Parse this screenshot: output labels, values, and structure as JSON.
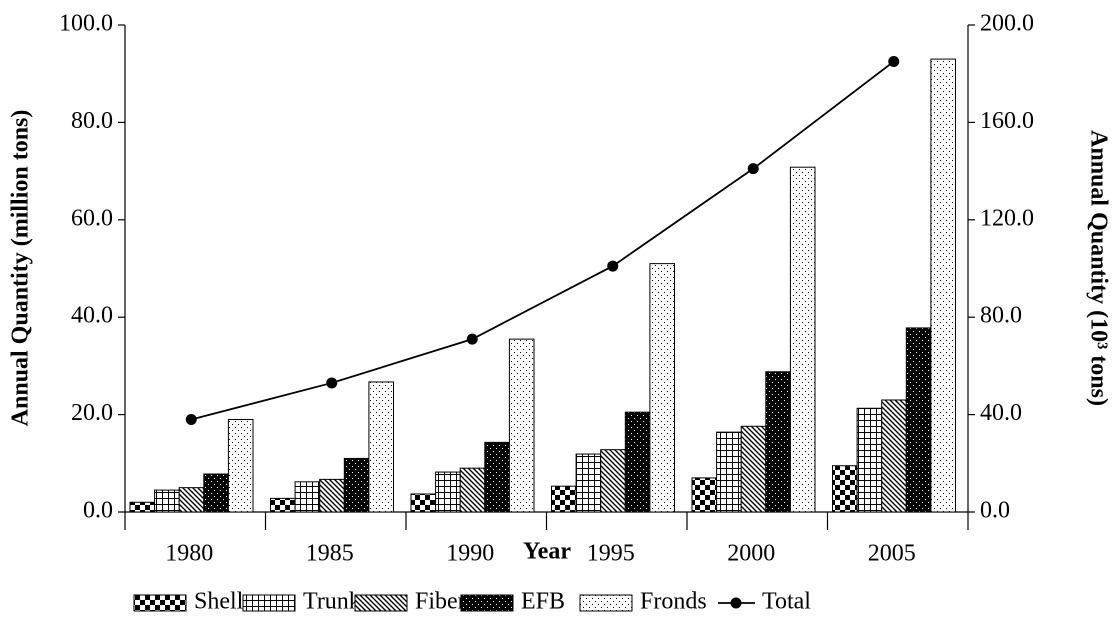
{
  "chart_data": {
    "type": "bar",
    "xlabel": "Year",
    "ylabel": "Annual Quantity (million tons)",
    "y2label": "Annual Quantity (10³ tons)",
    "categories": [
      "1980",
      "1985",
      "1990",
      "1995",
      "2000",
      "2005"
    ],
    "series": [
      {
        "name": "Shell",
        "color": "#000000",
        "values": [
          2.0,
          2.8,
          3.7,
          5.3,
          7.0,
          9.5
        ]
      },
      {
        "name": "Trunks",
        "color": "#000000",
        "values": [
          4.5,
          6.2,
          8.2,
          11.9,
          16.4,
          21.3
        ]
      },
      {
        "name": "Fiber",
        "color": "#000000",
        "values": [
          5.0,
          6.7,
          9.0,
          12.8,
          17.6,
          23.0
        ]
      },
      {
        "name": "EFB",
        "color": "#000000",
        "values": [
          7.8,
          11.0,
          14.3,
          20.5,
          28.8,
          37.8
        ]
      },
      {
        "name": "Fronds",
        "color": "#000000",
        "values": [
          19.0,
          26.7,
          35.5,
          51.0,
          70.8,
          93.0
        ]
      },
      {
        "name": "Total",
        "type": "line",
        "axis": "y2",
        "color": "#000000",
        "values": [
          38,
          53,
          71,
          101,
          141,
          185
        ]
      }
    ],
    "ylim": [
      0,
      100
    ],
    "yticks": [
      {
        "value": 0,
        "label": "0.0"
      },
      {
        "value": 20,
        "label": "20.0"
      },
      {
        "value": 40,
        "label": "40.0"
      },
      {
        "value": 60,
        "label": "60.0"
      },
      {
        "value": 80,
        "label": "80.0"
      },
      {
        "value": 100,
        "label": "100.0"
      }
    ],
    "y2lim": [
      0,
      200
    ],
    "y2ticks": [
      {
        "value": 0,
        "label": "0.0"
      },
      {
        "value": 40,
        "label": "40.0"
      },
      {
        "value": 80,
        "label": "80.0"
      },
      {
        "value": 120,
        "label": "120.0"
      },
      {
        "value": 160,
        "label": "160.0"
      },
      {
        "value": 200,
        "label": "200.0"
      }
    ],
    "grid": false,
    "legend": "bottom"
  }
}
